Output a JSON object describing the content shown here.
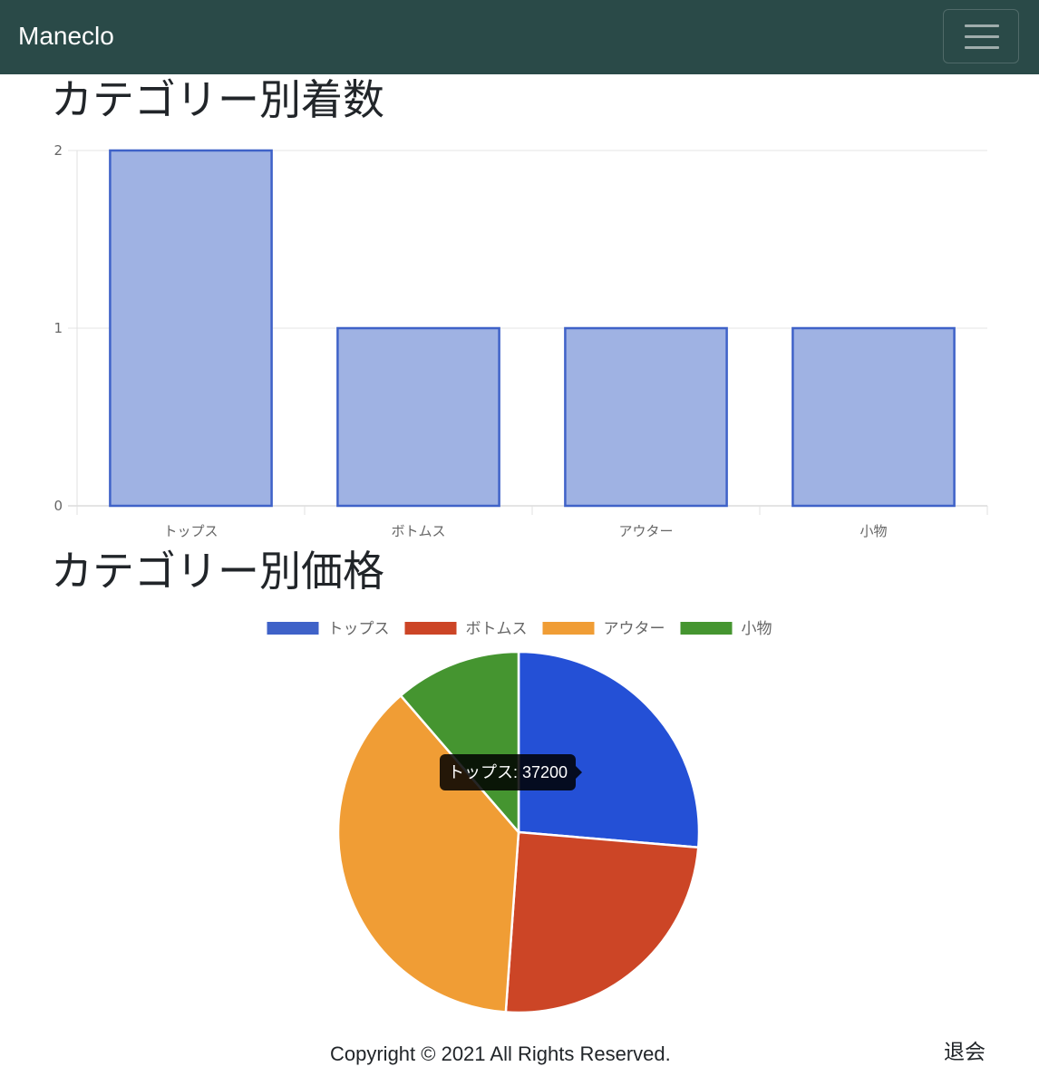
{
  "navbar": {
    "brand": "Maneclo",
    "toggler_icon": "hamburger-menu-icon"
  },
  "sections": {
    "bar_title": "カテゴリー別着数",
    "pie_title": "カテゴリー別価格"
  },
  "chart_data": [
    {
      "type": "bar",
      "categories": [
        "トップス",
        "ボトムス",
        "アウター",
        "小物"
      ],
      "values": [
        2,
        1,
        1,
        1
      ],
      "title": "カテゴリー別着数",
      "xlabel": "",
      "ylabel": "",
      "ylim": [
        0,
        2
      ],
      "yticks": [
        "0",
        "1",
        "2"
      ],
      "grid": true,
      "legend": "none",
      "colors": {
        "fill": "#9fb2e3",
        "border": "#3f62c8"
      }
    },
    {
      "type": "pie",
      "categories": [
        "トップス",
        "ボトムス",
        "アウター",
        "小物"
      ],
      "values": [
        37200,
        35000,
        53000,
        16000
      ],
      "title": "カテゴリー別価格",
      "legend": "top",
      "colors": [
        "#2450d6",
        "#cc4526",
        "#f09d35",
        "#459530"
      ],
      "legend_colors": [
        "#3f62c8",
        "#cc4526",
        "#f09d35",
        "#459530"
      ],
      "tooltip": {
        "category": "トップス",
        "value": "37200"
      }
    }
  ],
  "footer": {
    "copyright": "Copyright © 2021 All Rights Reserved.",
    "withdraw_link": "退会"
  }
}
